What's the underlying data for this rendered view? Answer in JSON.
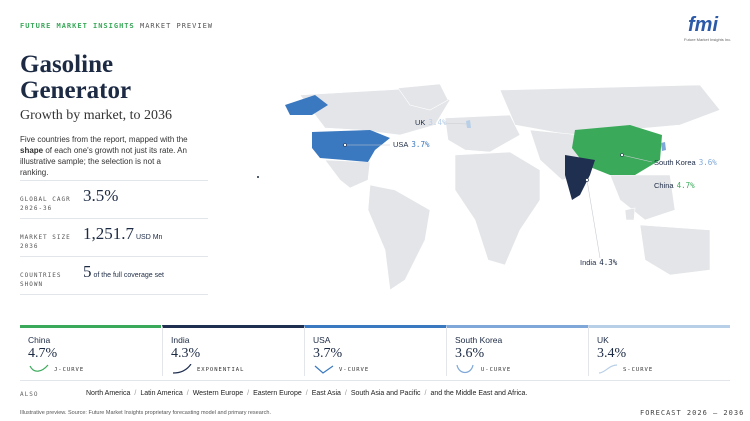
{
  "header": {
    "brand": "FUTURE MARKET INSIGHTS",
    "section": "MARKET PREVIEW",
    "logo": "fmi",
    "logo_sub": "Future Market Insights Inc."
  },
  "title_lines": [
    "Gasoline",
    "Generator"
  ],
  "subtitle": "Growth by market, to 2036",
  "description": [
    "Five countries from the report, mapped with the ",
    "shape",
    " of each one's growth not just its rate. An illustrative sample; the selection is not a ranking."
  ],
  "stats": [
    {
      "label": "GLOBAL CAGR 2026-36",
      "value": "3.5%"
    },
    {
      "label": "MARKET SIZE 2036",
      "value": "1,251.7",
      "unit": "USD Mn"
    },
    {
      "label": "COUNTRIES SHOWN",
      "value": "5",
      "unit": "of the full coverage set"
    }
  ],
  "markets": [
    {
      "name": "China",
      "value": "4.7%",
      "curve": "J-CURVE",
      "color": "#3aaa5a"
    },
    {
      "name": "India",
      "value": "4.3%",
      "curve": "EXPONENTIAL",
      "color": "#1f2f4f"
    },
    {
      "name": "USA",
      "value": "3.7%",
      "curve": "V-CURVE",
      "color": "#3a78c0"
    },
    {
      "name": "South Korea",
      "value": "3.6%",
      "curve": "U-CURVE",
      "color": "#7fa8d8"
    },
    {
      "name": "UK",
      "value": "3.4%",
      "curve": "S-CURVE",
      "color": "#b8cfe8"
    }
  ],
  "also": {
    "label": "ALSO",
    "regions": [
      "North America",
      "Latin America",
      "Western Europe",
      "Eastern Europe",
      "East Asia",
      "South Asia and Pacific",
      "and the Middle East and Africa."
    ]
  },
  "footer": {
    "source": "Illustrative preview. Source: Future Market Insights proprietary forecasting model and primary research.",
    "forecast": "FORECAST 2026 – 2036"
  }
}
